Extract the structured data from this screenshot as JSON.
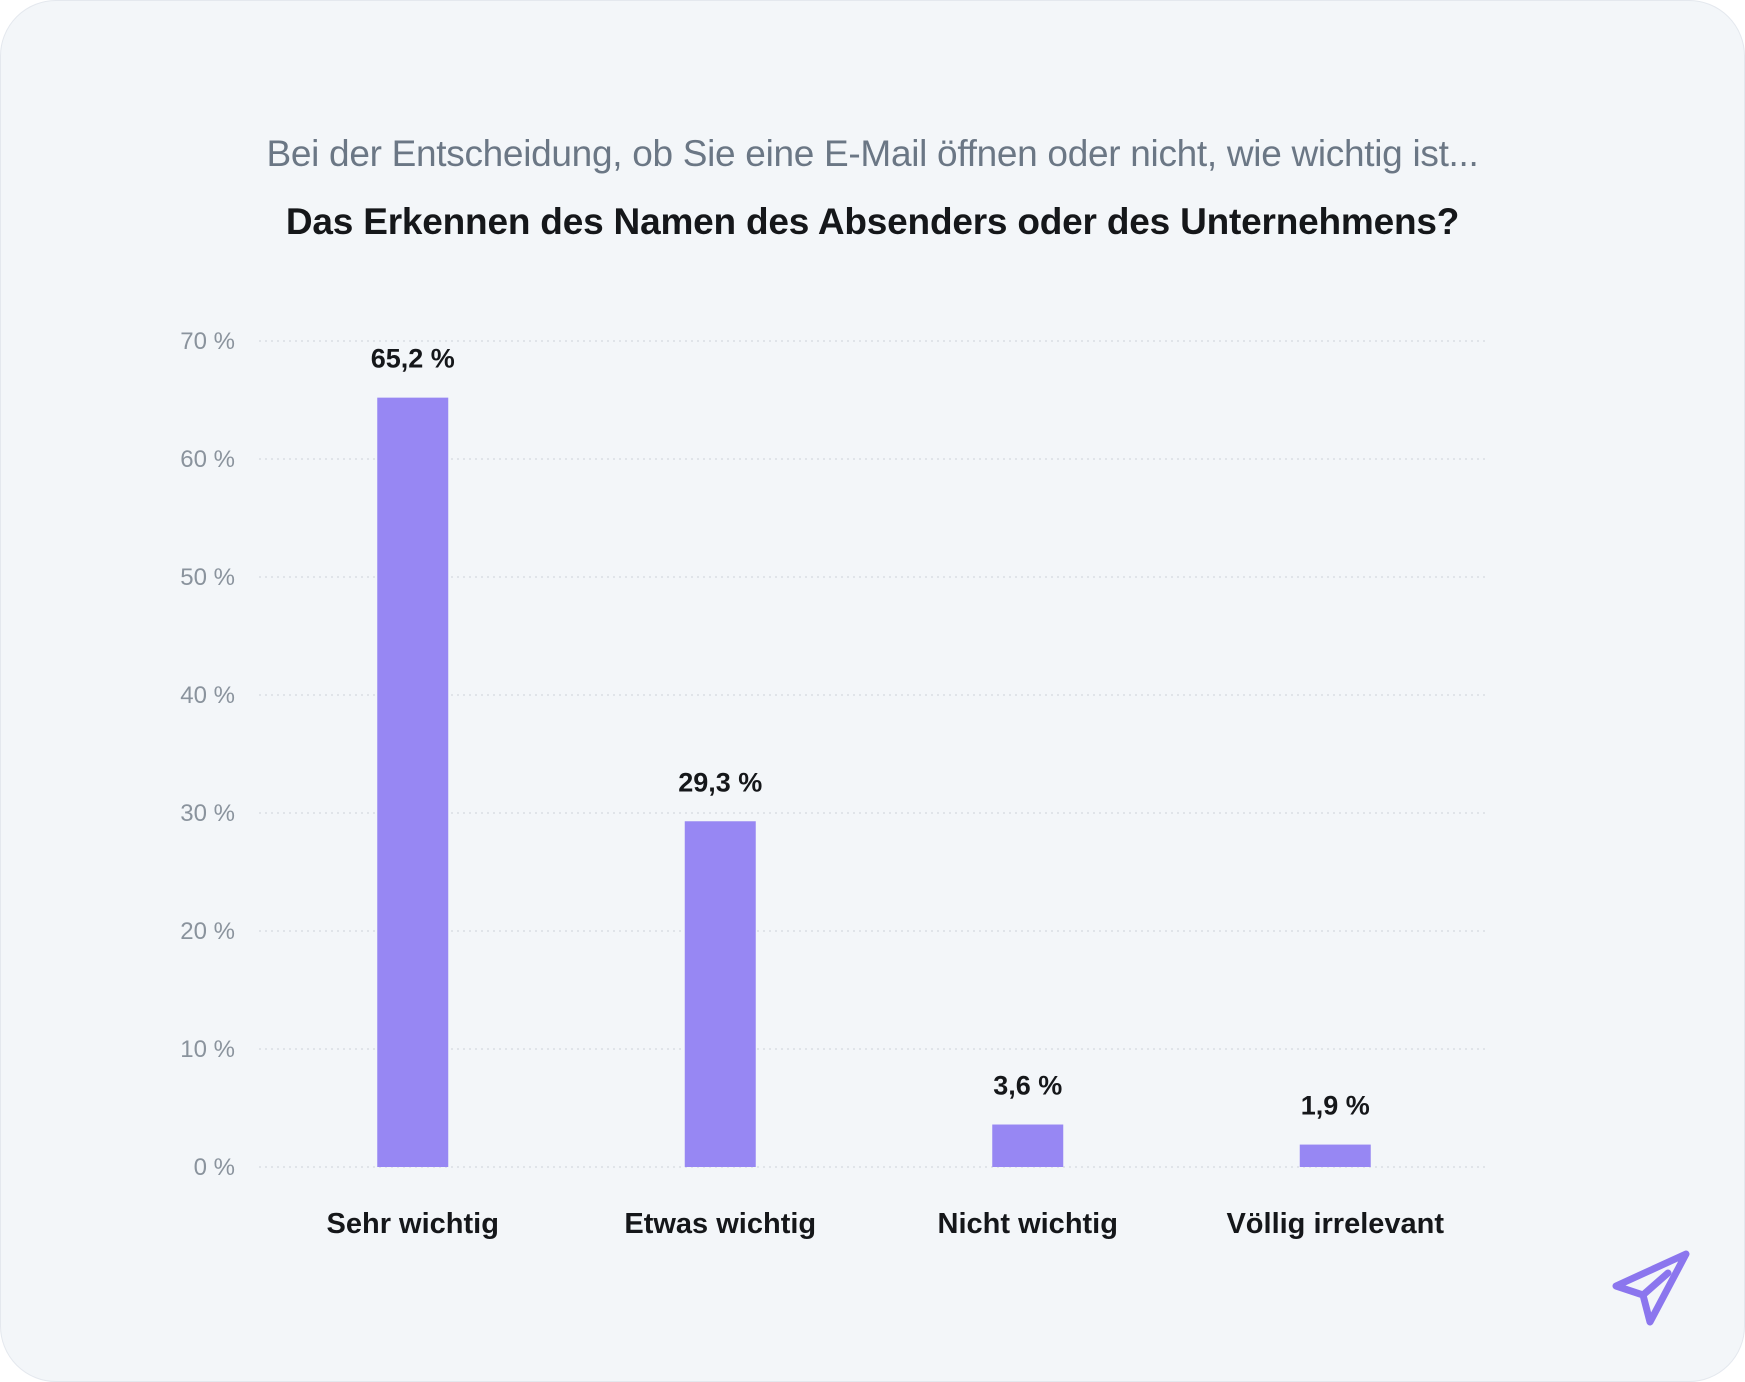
{
  "header": {
    "subtitle": "Bei der Entscheidung, ob Sie eine E-Mail öffnen oder nicht, wie wichtig ist...",
    "title": "Das Erkennen des Namen des Absenders oder des Unternehmens?"
  },
  "colors": {
    "background": "#f3f6f9",
    "bar": "#9787f3",
    "grid": "#d9dee4",
    "tick_text": "#8a939d",
    "label_text": "#15171a",
    "logo": "#8b76ee"
  },
  "logo": {
    "icon": "paper-plane-icon"
  },
  "chart_data": {
    "type": "bar",
    "categories": [
      "Sehr wichtig",
      "Etwas wichtig",
      "Nicht wichtig",
      "Völlig irrelevant"
    ],
    "values": [
      65.2,
      29.3,
      3.6,
      1.9
    ],
    "value_labels": [
      "65,2 %",
      "29,3 %",
      "3,6 %",
      "1,9 %"
    ],
    "ylim": [
      0,
      70
    ],
    "yticks": [
      0,
      10,
      20,
      30,
      40,
      50,
      60,
      70
    ],
    "ytick_labels": [
      "0 %",
      "10 %",
      "20 %",
      "30 %",
      "40 %",
      "50 %",
      "60 %",
      "70 %"
    ],
    "grid": true,
    "grid_style": "dotted",
    "xlabel": "",
    "ylabel": ""
  }
}
